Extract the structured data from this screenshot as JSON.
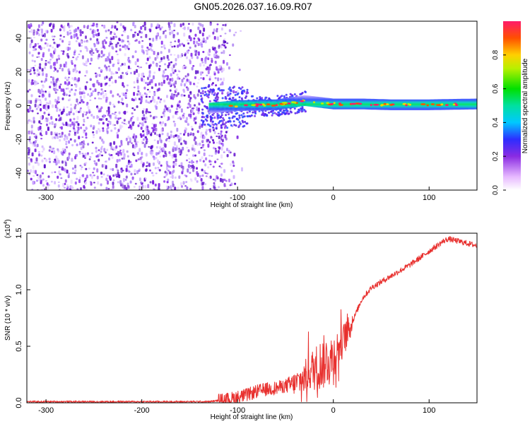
{
  "title": "GN05.2026.037.16.09.R07",
  "chart_data": [
    {
      "type": "heatmap",
      "xlabel": "Height of straight line (km)",
      "ylabel": "Frequency (Hz)",
      "xlim": [
        -320,
        150
      ],
      "ylim": [
        -50,
        50
      ],
      "xticks": [
        -300,
        -200,
        -100,
        0,
        100
      ],
      "yticks": [
        -40,
        -20,
        0,
        20,
        40
      ],
      "colorbar": {
        "label": "Normalized spectral amplitude",
        "range": [
          0,
          1
        ],
        "ticks": [
          "0.0",
          "0.2",
          "0.4",
          "0.6",
          "0.8"
        ]
      },
      "signal_band_hz": [
        {
          "x": -130,
          "y": -1.5
        },
        {
          "x": -100,
          "y": 0
        },
        {
          "x": -60,
          "y": 0.5
        },
        {
          "x": -30,
          "y": 3
        },
        {
          "x": 0,
          "y": 1
        },
        {
          "x": 30,
          "y": 1
        },
        {
          "x": 60,
          "y": 0.5
        },
        {
          "x": 100,
          "y": 0.5
        },
        {
          "x": 150,
          "y": 1
        }
      ],
      "noise_extent_km": [
        -320,
        -100
      ]
    },
    {
      "type": "line",
      "xlabel": "Height of straight line (km)",
      "ylabel": "SNR (10 * v/v)",
      "yscale_label": "(x10",
      "yscale_exp": "4",
      "yscale_close": ")",
      "xlim": [
        -320,
        150
      ],
      "ylim": [
        0,
        1.5
      ],
      "xticks": [
        -300,
        -200,
        -100,
        0,
        100
      ],
      "yticks": [
        "0.0",
        "0.5",
        "1.0",
        "1.5"
      ],
      "series": [
        {
          "color": "#e8302e",
          "x": [
            -320,
            -200,
            -130,
            -120,
            -110,
            -100,
            -90,
            -80,
            -70,
            -60,
            -50,
            -40,
            -30,
            -25,
            -20,
            -15,
            -10,
            -5,
            0,
            5,
            10,
            15,
            20,
            25,
            30,
            40,
            50,
            60,
            70,
            80,
            90,
            100,
            105,
            110,
            115,
            120,
            130,
            140,
            150
          ],
          "values": [
            0.01,
            0.01,
            0.01,
            0.02,
            0.03,
            0.05,
            0.07,
            0.1,
            0.12,
            0.13,
            0.15,
            0.17,
            0.22,
            0.28,
            0.3,
            0.33,
            0.36,
            0.39,
            0.42,
            0.48,
            0.55,
            0.62,
            0.72,
            0.82,
            0.92,
            1.02,
            1.07,
            1.12,
            1.17,
            1.22,
            1.28,
            1.34,
            1.37,
            1.4,
            1.43,
            1.45,
            1.43,
            1.41,
            1.39
          ]
        }
      ]
    }
  ]
}
